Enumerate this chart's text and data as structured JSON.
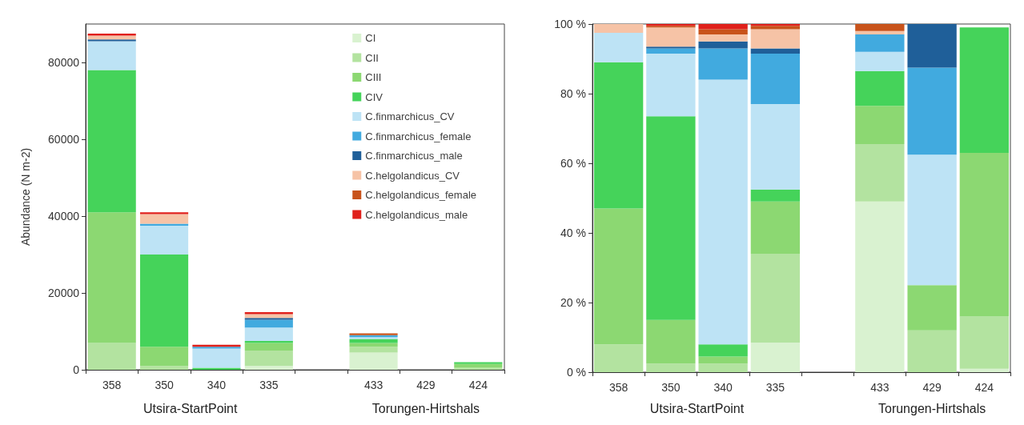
{
  "chart_data": [
    {
      "type": "bar",
      "stacked": true,
      "ylabel": "Abundance (N m-2)",
      "categories": [
        "358",
        "350",
        "340",
        "335",
        null,
        "433",
        "429",
        "424"
      ],
      "ylim": [
        0,
        90000
      ],
      "yticks": [
        0,
        20000,
        40000,
        60000,
        80000
      ],
      "legend": "top right",
      "annotations": [
        "Utsira-StartPoint",
        "Torungen-Hirtshals"
      ],
      "series": [
        {
          "name": "CI",
          "color": "#d9f2d0",
          "values": [
            0,
            0,
            0,
            1000,
            null,
            4500,
            0,
            0
          ]
        },
        {
          "name": "CII",
          "color": "#b3e3a0",
          "values": [
            7000,
            1000,
            0,
            4000,
            null,
            1500,
            0,
            500
          ]
        },
        {
          "name": "CIII",
          "color": "#8cd872",
          "values": [
            34000,
            5000,
            0,
            2000,
            null,
            1000,
            0,
            1000
          ]
        },
        {
          "name": "CIV",
          "color": "#45d35a",
          "values": [
            37000,
            24000,
            500,
            500,
            null,
            1000,
            0,
            500
          ]
        },
        {
          "name": "C.finmarchicus_CV",
          "color": "#bde3f5",
          "values": [
            7500,
            7500,
            5000,
            3500,
            null,
            500,
            null,
            0
          ]
        },
        {
          "name": "C.finmarchicus_female",
          "color": "#41aadf",
          "values": [
            0,
            500,
            500,
            2000,
            null,
            500,
            0,
            0
          ]
        },
        {
          "name": "C.finmarchicus_male",
          "color": "#1f5f99",
          "values": [
            500,
            0,
            0,
            500,
            null,
            0,
            0,
            0
          ]
        },
        {
          "name": "C.helgolandicus_CV",
          "color": "#f6c3a6",
          "values": [
            1000,
            2500,
            0,
            1000,
            null,
            0,
            0,
            0
          ]
        },
        {
          "name": "C.helgolandicus_female",
          "color": "#c8531b",
          "values": [
            0,
            0,
            0,
            0,
            null,
            500,
            0,
            0
          ]
        },
        {
          "name": "C.helgolandicus_male",
          "color": "#e0201b",
          "values": [
            500,
            500,
            500,
            500,
            null,
            0,
            0,
            0
          ]
        }
      ]
    },
    {
      "type": "bar",
      "stacked": true,
      "categories": [
        "358",
        "350",
        "340",
        "335",
        null,
        "433",
        "429",
        "424"
      ],
      "ylim": [
        0,
        100
      ],
      "yticks": [
        {
          "value": 0,
          "label": "0 %"
        },
        {
          "value": 20,
          "label": "20 %"
        },
        {
          "value": 40,
          "label": "40 %"
        },
        {
          "value": 60,
          "label": "60 %"
        },
        {
          "value": 80,
          "label": "80 %"
        },
        {
          "value": 100,
          "label": "100 %"
        }
      ],
      "annotations": [
        "Utsira-StartPoint",
        "Torungen-Hirtshals"
      ],
      "series": [
        {
          "color": "#d9f2d0",
          "values": [
            0,
            0,
            0,
            8.5,
            null,
            49,
            0,
            1
          ]
        },
        {
          "color": "#b3e3a0",
          "values": [
            8,
            2.5,
            2.5,
            25.5,
            null,
            16.5,
            12,
            15
          ]
        },
        {
          "color": "#8cd872",
          "values": [
            39,
            12.5,
            2,
            15,
            null,
            11,
            13,
            47
          ]
        },
        {
          "color": "#45d35a",
          "values": [
            42,
            58.5,
            3.5,
            3.5,
            null,
            10,
            0,
            36
          ]
        },
        {
          "color": "#bde3f5",
          "values": [
            8.5,
            18,
            76,
            24.5,
            null,
            5.5,
            37.5,
            0
          ]
        },
        {
          "color": "#41aadf",
          "values": [
            0,
            1.5,
            9,
            14.5,
            null,
            5,
            25,
            0
          ]
        },
        {
          "color": "#1f5f99",
          "values": [
            0,
            0.5,
            2,
            1.5,
            null,
            0,
            12.5,
            0
          ]
        },
        {
          "color": "#f6c3a6",
          "values": [
            2.5,
            5.5,
            2,
            5.5,
            null,
            1,
            0,
            0
          ]
        },
        {
          "color": "#c8531b",
          "values": [
            0,
            0.5,
            1.5,
            1,
            null,
            2,
            0,
            0
          ]
        },
        {
          "color": "#e0201b",
          "values": [
            0,
            0.5,
            1.5,
            0.5,
            null,
            0,
            0,
            0
          ]
        }
      ]
    }
  ]
}
